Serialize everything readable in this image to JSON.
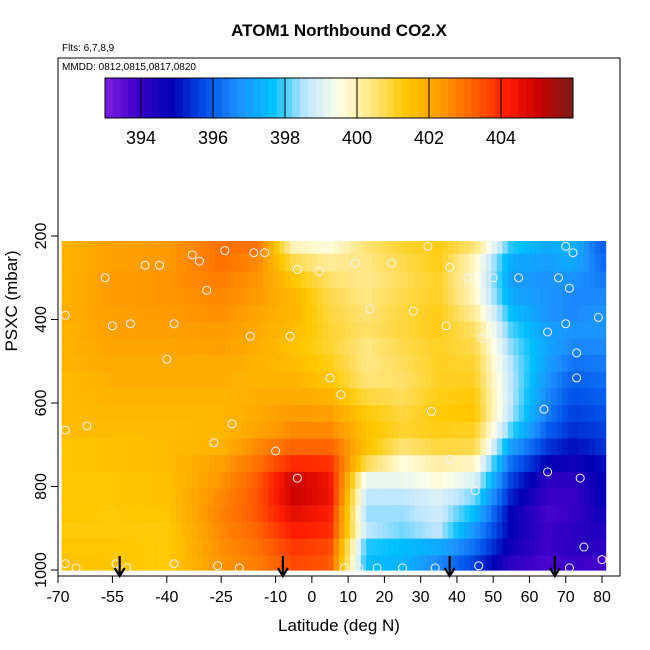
{
  "chart_data": {
    "type": "heatmap",
    "title": "ATOM1 Northbound CO2.X",
    "subtitle_flights": "Flts: 6,7,8,9",
    "subtitle_dates": "MMDD: 0812,0815,0817,0820",
    "xlabel": "Latitude (deg N)",
    "ylabel": "PSXC (mbar)",
    "xlim": [
      -70,
      80
    ],
    "ylim": [
      1000,
      200
    ],
    "x_ticks": [
      -70,
      -55,
      -40,
      -25,
      -10,
      0,
      10,
      20,
      30,
      40,
      50,
      60,
      70,
      80
    ],
    "y_ticks": [
      200,
      400,
      600,
      800,
      1000
    ],
    "colorbar": {
      "min": 393,
      "max": 406,
      "ticks": [
        394,
        396,
        398,
        400,
        402,
        404
      ]
    },
    "arrows_lat": [
      -53,
      -8,
      38,
      67
    ],
    "levels": [
      220,
      265,
      305,
      345,
      385,
      425,
      465,
      505,
      545,
      585,
      625,
      665,
      705,
      745,
      785,
      825,
      865,
      905,
      945,
      985
    ],
    "profiles": [
      {
        "lat": -68,
        "values": [
          401.8,
          401.8,
          401.8,
          401.8,
          401.9,
          401.8,
          401.8,
          401.8,
          401.6,
          401.6,
          401.6,
          401.6,
          401.4,
          401.4,
          401.4,
          401.4,
          401.4,
          401.3,
          401.4,
          401.5
        ]
      },
      {
        "lat": -55,
        "values": [
          402.2,
          402.2,
          402.3,
          402.3,
          402.2,
          402.2,
          402.1,
          402.0,
          401.9,
          401.8,
          401.7,
          401.6,
          401.5,
          401.5,
          401.4,
          401.4,
          401.3,
          401.3,
          401.4,
          401.4
        ]
      },
      {
        "lat": -40,
        "values": [
          402.3,
          402.3,
          402.4,
          402.4,
          402.3,
          402.2,
          402.1,
          402.0,
          401.9,
          401.8,
          401.7,
          401.6,
          401.6,
          401.6,
          401.5,
          401.5,
          401.4,
          401.3,
          401.3,
          401.3
        ]
      },
      {
        "lat": -25,
        "values": [
          403.0,
          403.0,
          402.8,
          402.6,
          402.5,
          402.3,
          402.2,
          402.0,
          401.9,
          401.8,
          401.7,
          401.7,
          401.8,
          402.2,
          402.4,
          402.6,
          402.7,
          402.6,
          402.5,
          402.4
        ]
      },
      {
        "lat": -15,
        "values": [
          403.0,
          402.6,
          402.4,
          402.3,
          402.1,
          402.0,
          401.9,
          401.8,
          401.8,
          401.9,
          402.0,
          402.1,
          402.6,
          403.0,
          403.3,
          403.4,
          403.4,
          403.2,
          403.0,
          402.8
        ]
      },
      {
        "lat": -5,
        "values": [
          399.9,
          400.8,
          401.4,
          401.7,
          401.7,
          401.6,
          401.5,
          401.6,
          401.8,
          402.0,
          402.3,
          402.6,
          403.2,
          404.0,
          405.0,
          405.0,
          404.6,
          404.2,
          403.8,
          403.6
        ]
      },
      {
        "lat": 5,
        "values": [
          399.6,
          400.2,
          400.6,
          400.8,
          400.9,
          401.0,
          401.0,
          401.2,
          401.4,
          401.8,
          402.2,
          402.6,
          403.2,
          403.9,
          404.4,
          404.5,
          404.2,
          404.0,
          403.6,
          403.4
        ]
      },
      {
        "lat": 15,
        "values": [
          400.5,
          400.4,
          400.3,
          400.4,
          400.5,
          400.6,
          400.4,
          400.4,
          400.5,
          400.9,
          401.3,
          401.5,
          401.5,
          400.8,
          399.2,
          398.6,
          398.4,
          398.6,
          397.8,
          397.6
        ]
      },
      {
        "lat": 25,
        "values": [
          401.0,
          400.8,
          400.7,
          400.8,
          400.9,
          400.9,
          400.8,
          400.7,
          400.6,
          400.7,
          400.9,
          401.0,
          400.5,
          399.6,
          399.2,
          398.6,
          398.4,
          398.2,
          397.6,
          397.4
        ]
      },
      {
        "lat": 35,
        "values": [
          401.2,
          401.2,
          401.1,
          401.1,
          401.2,
          401.2,
          401.1,
          401.1,
          401.1,
          401.2,
          401.3,
          401.2,
          400.9,
          400.1,
          399.6,
          399.0,
          398.8,
          398.6,
          397.2,
          396.6
        ]
      },
      {
        "lat": 45,
        "values": [
          400.5,
          399.8,
          399.7,
          399.8,
          400.2,
          400.6,
          400.8,
          401.0,
          401.1,
          401.3,
          401.4,
          401.1,
          400.8,
          399.8,
          399.0,
          398.2,
          397.5,
          396.8,
          396.2,
          395.6
        ]
      },
      {
        "lat": 55,
        "values": [
          397.8,
          397.2,
          397.0,
          397.2,
          397.6,
          398.0,
          398.3,
          398.5,
          398.6,
          398.6,
          398.5,
          398.0,
          397.0,
          396.2,
          395.6,
          395.2,
          394.8,
          394.8,
          394.6,
          394.2
        ]
      },
      {
        "lat": 65,
        "values": [
          397.2,
          397.0,
          396.8,
          396.8,
          396.8,
          397.0,
          397.1,
          397.0,
          396.8,
          396.6,
          396.4,
          396.0,
          395.5,
          394.8,
          394.2,
          394.0,
          393.8,
          393.9,
          393.9,
          393.7
        ]
      },
      {
        "lat": 72,
        "values": [
          397.4,
          397.2,
          396.8,
          396.6,
          396.6,
          396.8,
          396.6,
          396.3,
          396.0,
          395.8,
          395.6,
          395.4,
          395.0,
          394.6,
          394.2,
          394.0,
          394.0,
          394.2,
          394.2,
          394.0
        ]
      },
      {
        "lat": 80,
        "values": [
          396.0,
          396.2,
          396.4,
          396.6,
          396.8,
          396.8,
          396.6,
          396.4,
          396.2,
          396.0,
          395.8,
          395.6,
          395.4,
          395.0,
          394.8,
          394.8,
          394.6,
          394.4,
          394.2,
          393.8
        ]
      }
    ],
    "points": [
      {
        "lat": -68,
        "p": 390
      },
      {
        "lat": -68,
        "p": 665
      },
      {
        "lat": -68,
        "p": 985
      },
      {
        "lat": -65,
        "p": 995
      },
      {
        "lat": -62,
        "p": 655
      },
      {
        "lat": -57,
        "p": 300
      },
      {
        "lat": -55,
        "p": 415
      },
      {
        "lat": -54,
        "p": 985
      },
      {
        "lat": -50,
        "p": 410
      },
      {
        "lat": -51,
        "p": 995
      },
      {
        "lat": -46,
        "p": 270
      },
      {
        "lat": -42,
        "p": 270
      },
      {
        "lat": -40,
        "p": 495
      },
      {
        "lat": -38,
        "p": 410
      },
      {
        "lat": -38,
        "p": 985
      },
      {
        "lat": -33,
        "p": 245
      },
      {
        "lat": -31,
        "p": 260
      },
      {
        "lat": -29,
        "p": 330
      },
      {
        "lat": -27,
        "p": 695
      },
      {
        "lat": -26,
        "p": 990
      },
      {
        "lat": -24,
        "p": 235
      },
      {
        "lat": -22,
        "p": 650
      },
      {
        "lat": -20,
        "p": 995
      },
      {
        "lat": -17,
        "p": 440
      },
      {
        "lat": -16,
        "p": 240
      },
      {
        "lat": -13,
        "p": 240
      },
      {
        "lat": -10,
        "p": 715
      },
      {
        "lat": -6,
        "p": 440
      },
      {
        "lat": -4,
        "p": 280
      },
      {
        "lat": -4,
        "p": 780
      },
      {
        "lat": 2,
        "p": 285
      },
      {
        "lat": 5,
        "p": 540
      },
      {
        "lat": 8,
        "p": 580
      },
      {
        "lat": 9,
        "p": 995
      },
      {
        "lat": 12,
        "p": 265
      },
      {
        "lat": 13,
        "p": 995
      },
      {
        "lat": 16,
        "p": 375
      },
      {
        "lat": 18,
        "p": 995
      },
      {
        "lat": 22,
        "p": 265
      },
      {
        "lat": 25,
        "p": 995
      },
      {
        "lat": 28,
        "p": 380
      },
      {
        "lat": 32,
        "p": 225
      },
      {
        "lat": 33,
        "p": 620
      },
      {
        "lat": 34,
        "p": 995
      },
      {
        "lat": 37,
        "p": 415
      },
      {
        "lat": 38,
        "p": 735
      },
      {
        "lat": 38,
        "p": 275
      },
      {
        "lat": 43,
        "p": 300
      },
      {
        "lat": 45,
        "p": 810
      },
      {
        "lat": 46,
        "p": 990
      },
      {
        "lat": 47,
        "p": 445
      },
      {
        "lat": 50,
        "p": 300
      },
      {
        "lat": 57,
        "p": 300
      },
      {
        "lat": 64,
        "p": 615
      },
      {
        "lat": 65,
        "p": 430
      },
      {
        "lat": 65,
        "p": 765
      },
      {
        "lat": 68,
        "p": 300
      },
      {
        "lat": 70,
        "p": 225
      },
      {
        "lat": 70,
        "p": 410
      },
      {
        "lat": 71,
        "p": 325
      },
      {
        "lat": 71,
        "p": 995
      },
      {
        "lat": 72,
        "p": 240
      },
      {
        "lat": 73,
        "p": 480
      },
      {
        "lat": 73,
        "p": 540
      },
      {
        "lat": 74,
        "p": 780
      },
      {
        "lat": 75,
        "p": 945
      },
      {
        "lat": 79,
        "p": 395
      },
      {
        "lat": 80,
        "p": 975
      }
    ]
  },
  "colors": {
    "scale": [
      "#7b1fe0",
      "#3c00c8",
      "#0000b4",
      "#0050e8",
      "#1e90ff",
      "#00c0ff",
      "#bfe6ff",
      "#ffffe8",
      "#ffe680",
      "#ffc800",
      "#ff9c00",
      "#ff6400",
      "#ff1e00",
      "#c80000",
      "#7a1c1c"
    ]
  }
}
